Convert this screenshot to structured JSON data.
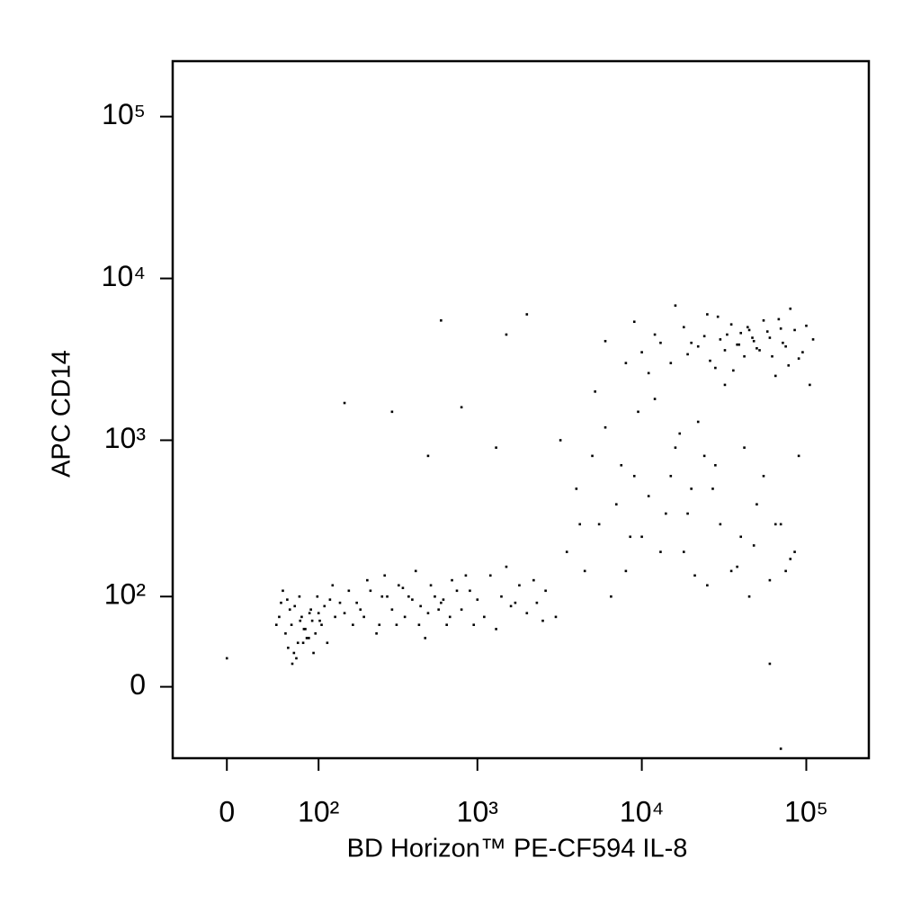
{
  "chart_data": {
    "type": "scatter",
    "scale": "biexponential",
    "xlabel": "BD Horizon™ PE-CF594 IL-8",
    "ylabel": "APC CD14",
    "color": "#000000",
    "xlim": [
      -50,
      240000
    ],
    "ylim": [
      -72,
      220000
    ],
    "xticks": [
      0,
      {
        "value": 100,
        "label": "10²"
      },
      {
        "value": 1000,
        "label": "10³"
      },
      {
        "value": 10000,
        "label": "10⁴"
      },
      {
        "value": 100000,
        "label": "10⁵"
      }
    ],
    "yticks": [
      0,
      {
        "value": 100,
        "label": "10²"
      },
      {
        "value": 1000,
        "label": "10³"
      },
      {
        "value": 10000,
        "label": "10⁴"
      },
      {
        "value": 100000,
        "label": "10⁵"
      }
    ],
    "x": [
      45,
      55,
      60,
      70,
      75,
      80,
      50,
      65,
      90,
      100,
      110,
      85,
      72,
      58,
      62,
      95,
      120,
      130,
      68,
      77,
      52,
      88,
      105,
      140,
      150,
      48,
      66,
      73,
      82,
      98,
      160,
      170,
      115,
      125,
      92,
      57,
      63,
      78,
      86,
      102,
      180,
      200,
      220,
      250,
      280,
      300,
      330,
      360,
      400,
      450,
      500,
      550,
      600,
      650,
      700,
      800,
      900,
      1000,
      1100,
      1200,
      1400,
      1600,
      1800,
      2000,
      2300,
      2600,
      3000,
      210,
      240,
      270,
      320,
      380,
      420,
      480,
      520,
      580,
      680,
      750,
      850,
      950,
      1300,
      1500,
      1700,
      2200,
      2500,
      190,
      260,
      350,
      440,
      620,
      3500,
      4000,
      4500,
      5000,
      5500,
      6000,
      7000,
      8000,
      9000,
      10000,
      12000,
      14000,
      16000,
      18000,
      20000,
      22000,
      25000,
      28000,
      30000,
      35000,
      40000,
      45000,
      50000,
      60000,
      70000,
      80000,
      90000,
      3200,
      4200,
      5200,
      6500,
      7500,
      8500,
      9500,
      11000,
      13000,
      15000,
      17000,
      19000,
      21000,
      24000,
      27000,
      32000,
      38000,
      42000,
      48000,
      55000,
      65000,
      75000,
      85000,
      10000,
      12000,
      15000,
      18000,
      20000,
      22000,
      25000,
      28000,
      30000,
      32000,
      35000,
      38000,
      40000,
      42000,
      45000,
      48000,
      50000,
      55000,
      60000,
      65000,
      70000,
      75000,
      80000,
      90000,
      100000,
      110000,
      8000,
      9000,
      11000,
      13000,
      16000,
      19000,
      24000,
      26000,
      29000,
      33000,
      36000,
      39000,
      44000,
      47000,
      52000,
      58000,
      62000,
      68000,
      72000,
      78000,
      85000,
      95000,
      105000,
      6000,
      150,
      300,
      500,
      600,
      800,
      1500,
      1300,
      2000,
      70000,
      60000,
      0
    ],
    "values": [
      60,
      50,
      80,
      40,
      70,
      55,
      90,
      30,
      65,
      75,
      85,
      45,
      100,
      35,
      60,
      50,
      95,
      70,
      25,
      40,
      110,
      80,
      60,
      90,
      75,
      70,
      85,
      65,
      45,
      100,
      110,
      60,
      40,
      120,
      30,
      95,
      20,
      55,
      75,
      65,
      90,
      70,
      110,
      60,
      100,
      80,
      120,
      70,
      95,
      85,
      75,
      100,
      90,
      60,
      130,
      80,
      110,
      95,
      70,
      140,
      100,
      85,
      120,
      75,
      90,
      110,
      70,
      130,
      50,
      140,
      60,
      100,
      150,
      45,
      120,
      80,
      70,
      110,
      140,
      60,
      55,
      160,
      90,
      130,
      65,
      80,
      100,
      115,
      60,
      95,
      200,
      500,
      150,
      800,
      300,
      1200,
      400,
      150,
      600,
      250,
      1800,
      350,
      900,
      200,
      500,
      1300,
      120,
      700,
      300,
      150,
      250,
      100,
      400,
      130,
      300,
      180,
      800,
      1000,
      300,
      2000,
      100,
      700,
      250,
      1500,
      450,
      200,
      600,
      1100,
      350,
      140,
      800,
      500,
      2200,
      160,
      900,
      220,
      600,
      300,
      150,
      200,
      3500,
      4500,
      3000,
      5000,
      4000,
      3800,
      6000,
      2800,
      4200,
      3600,
      5200,
      3900,
      4600,
      3300,
      4800,
      4100,
      3700,
      5500,
      4300,
      2500,
      4900,
      3800,
      6500,
      3200,
      5100,
      4200,
      3000,
      5400,
      2600,
      4000,
      6800,
      3400,
      4400,
      3100,
      5800,
      4500,
      2700,
      3900,
      5000,
      4300,
      3600,
      4700,
      3300,
      5600,
      4000,
      2900,
      4800,
      3500,
      2200,
      4100,
      1700,
      1500,
      800,
      5500,
      1600,
      4500,
      900,
      6000,
      -60,
      20,
      25
    ]
  }
}
